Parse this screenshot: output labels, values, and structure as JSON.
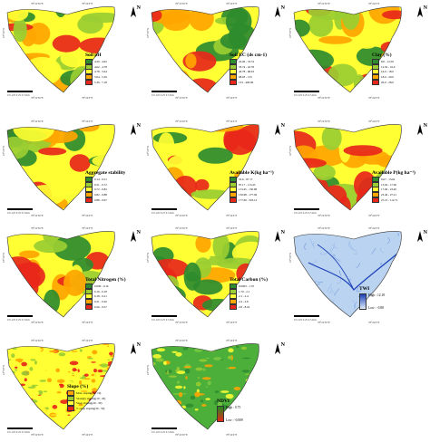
{
  "coordinates": {
    "lon_1": "78°22'30\"E",
    "lon_2": "78°24'0\"E",
    "lat": "18°5'0\"N"
  },
  "scale_label": "0 0.125 0.25 0.5 Km",
  "north": "N",
  "panels": [
    {
      "id": "soil-ph",
      "title": "Soil pH",
      "legend": [
        {
          "label": "4.20 - 4.62",
          "color": "#2e8b2e"
        },
        {
          "label": "4.62 - 4.78",
          "color": "#9acd32"
        },
        {
          "label": "4.78 - 5.04",
          "color": "#ffff33"
        },
        {
          "label": "5.04 - 5.36",
          "color": "#ffa500"
        },
        {
          "label": "5.36 - 7.18",
          "color": "#e8271a"
        }
      ]
    },
    {
      "id": "soil-ec",
      "title": "Soil EC (ds cm-1)",
      "legend": [
        {
          "label": "22.06 - 33.74",
          "color": "#2e8b2e"
        },
        {
          "label": "33.74 - 42.78",
          "color": "#9acd32"
        },
        {
          "label": "42.78 - 68.03",
          "color": "#ffff33"
        },
        {
          "label": "68.03 - 133",
          "color": "#ffa500"
        },
        {
          "label": "133 - 400.96",
          "color": "#e8271a"
        }
      ]
    },
    {
      "id": "clay",
      "title": "Clay (%)",
      "legend": [
        {
          "label": "8.0 - 12.50",
          "color": "#2e8b2e"
        },
        {
          "label": "12.50 - 16.0",
          "color": "#9acd32"
        },
        {
          "label": "16.0 - 18.0",
          "color": "#ffff33"
        },
        {
          "label": "18.0 - 20.0",
          "color": "#ffa500"
        },
        {
          "label": "20.0 - 28.0",
          "color": "#e8271a"
        }
      ]
    },
    {
      "id": "aggregate-stability",
      "title": "Aggregate stability",
      "legend": [
        {
          "label": "0.14 - 0.51",
          "color": "#2e8b2e"
        },
        {
          "label": "0.51 - 0.72",
          "color": "#9acd32"
        },
        {
          "label": "0.72 - 0.82",
          "color": "#ffff33"
        },
        {
          "label": "0.82 - 0.88",
          "color": "#ffa500"
        },
        {
          "label": "0.88 - 0.97",
          "color": "#e8271a"
        }
      ]
    },
    {
      "id": "available-k",
      "title": "Available K(kg ha⁻¹)",
      "legend": [
        {
          "label": "53.6 - 87.17",
          "color": "#2e8b2e"
        },
        {
          "label": "87.17 - 113.45",
          "color": "#9acd32"
        },
        {
          "label": "113.45 - 130.98",
          "color": "#ffff33"
        },
        {
          "label": "130.98 - 177.09",
          "color": "#ffa500"
        },
        {
          "label": "177.09 - 503.12",
          "color": "#e8271a"
        }
      ]
    },
    {
      "id": "available-p",
      "title": "Available P(kg ha⁻¹)",
      "legend": [
        {
          "label": "9.67 - 13.62",
          "color": "#2e8b2e"
        },
        {
          "label": "13.62 - 17.06",
          "color": "#9acd32"
        },
        {
          "label": "17.06 - 23.40",
          "color": "#ffff33"
        },
        {
          "label": "23.40 - 27.21",
          "color": "#ffa500"
        },
        {
          "label": "27.21 - 112.71",
          "color": "#e8271a"
        }
      ]
    },
    {
      "id": "total-nitrogen",
      "title": "Total Nitrogen (%)",
      "legend": [
        {
          "label": "0.009 - 0.16",
          "color": "#2e8b2e"
        },
        {
          "label": "0.16 - 0.18",
          "color": "#9acd32"
        },
        {
          "label": "0.18 - 0.21",
          "color": "#ffff33"
        },
        {
          "label": "0.21 - 0.26",
          "color": "#ffa500"
        },
        {
          "label": "0.26 - 0.57",
          "color": "#e8271a"
        }
      ]
    },
    {
      "id": "total-carbon",
      "title": "Total Carbon (%)",
      "legend": [
        {
          "label": "0.0003 - 1.70",
          "color": "#2e8b2e"
        },
        {
          "label": "1.70 - 2.1",
          "color": "#9acd32"
        },
        {
          "label": "2.1 - 2.4",
          "color": "#ffff33"
        },
        {
          "label": "2.4 - 2.8",
          "color": "#ffa500"
        },
        {
          "label": "2.8 - 8.22",
          "color": "#e8271a"
        }
      ]
    },
    {
      "id": "twi",
      "title": "TWI",
      "gradient": {
        "high": "High : 12.18",
        "low": "Low : -0.88",
        "color_high": "#1b3fb8",
        "color_low": "#e0eefb"
      }
    },
    {
      "id": "slope",
      "title": "Slope (%)",
      "legend": [
        {
          "label": "Mod. sloping (0 - 10)",
          "color": "#ffa500"
        },
        {
          "label": "Strongly sloping(10 - 20)",
          "color": "#9acd32"
        },
        {
          "label": "Steep sloping(20 - 30)",
          "color": "#ffff33"
        },
        {
          "label": "V. steep sloping(30 - 50)",
          "color": "#e8271a"
        }
      ]
    },
    {
      "id": "ndvi",
      "title": "NDVI",
      "gradient": {
        "high": "High : 0.75",
        "low": "Low : -0.009",
        "color_high": "#1f8a1f",
        "color_low": "#e8271a"
      }
    }
  ]
}
